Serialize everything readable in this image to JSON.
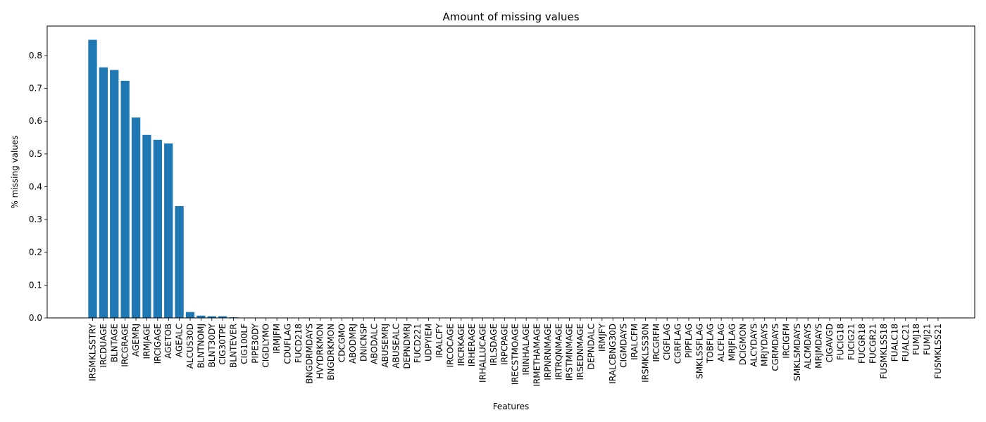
{
  "chart_data": {
    "type": "bar",
    "title": "Amount of missing values",
    "xlabel": "Features",
    "ylabel": "% missing values",
    "ylim": [
      0,
      0.89
    ],
    "yticks": [
      0.0,
      0.1,
      0.2,
      0.3,
      0.4,
      0.5,
      0.6,
      0.7,
      0.8
    ],
    "ytick_labels": [
      "0.0",
      "0.1",
      "0.2",
      "0.3",
      "0.4",
      "0.5",
      "0.6",
      "0.7",
      "0.8"
    ],
    "grid": false,
    "bar_color": "#1f77b4",
    "categories": [
      "IRSMKLSSTRY",
      "IRCDUAGE",
      "BLNTAGE",
      "IRCGRAGE",
      "AGEMRJ",
      "IRMJAGE",
      "IRCIGAGE",
      "AGETOB",
      "AGEALC",
      "ALCUS30D",
      "BLNTNOMJ",
      "BLNT30DY",
      "CIG30TPE",
      "BLNTEVER",
      "CIG100LF",
      "PIPE30DY",
      "CIGDLYMO",
      "IRMJFM",
      "CDUFLAG",
      "FUCD218",
      "BNGDRMDAYS",
      "HVYDRKMON",
      "BNGDRKMON",
      "CDCGMO",
      "ABODMRJ",
      "DNICNSP",
      "ABODALC",
      "ABUSEMRJ",
      "ABUSEALC",
      "DEPNDMRJ",
      "FUCD221",
      "UDPYIEM",
      "IRALCFY",
      "IRCOCAGE",
      "IRCRKAGE",
      "IRHERAGE",
      "IRHALLUCAGE",
      "IRLSDAGE",
      "IRPCPAGE",
      "IRECSTMOAGE",
      "IRINHALAGE",
      "IRMETHAMAGE",
      "IRPNRNMAGE",
      "IRTRQNMAGE",
      "IRSTMNMAGE",
      "IRSEDNMAGE",
      "DEPNDALC",
      "IRMJFY",
      "IRALCBNG30D",
      "CIGMDAYS",
      "IRALCFM",
      "IRSMKLSS30N",
      "IRCGRFM",
      "CIGFLAG",
      "CGRFLAG",
      "PIPFLAG",
      "SMKLSSFLAG",
      "TOBFLAG",
      "ALCFLAG",
      "MRJFLAG",
      "DCIGMON",
      "ALCYDAYS",
      "MRJYDAYS",
      "CGRMDAYS",
      "IRCIGFM",
      "SMKLSMDAYS",
      "ALCMDAYS",
      "MRJMDAYS",
      "CIGAVGD",
      "FUCIG18",
      "FUCIG21",
      "FUCGR18",
      "FUCGR21",
      "FUSMKLSS18",
      "FUALC18",
      "FUALC21",
      "FUMJ18",
      "FUMJ21",
      "FUSMKLSS21"
    ],
    "values": [
      0.848,
      0.764,
      0.756,
      0.723,
      0.611,
      0.558,
      0.543,
      0.532,
      0.341,
      0.018,
      0.007,
      0.005,
      0.005,
      0.002,
      0.001,
      0.001,
      0.001,
      0.0005,
      0.0005,
      0.0005,
      0.0004,
      0.0004,
      0.0004,
      0.0003,
      0.0003,
      0.0003,
      0.0003,
      0.0003,
      0.0003,
      0.0003,
      0.0002,
      0.0002,
      0.0002,
      0.0002,
      0.0002,
      0.0002,
      0.0002,
      0.0002,
      0.0002,
      0.0002,
      0.0002,
      0.0002,
      0.0002,
      0.0002,
      0.0002,
      0.0002,
      0.0001,
      0.0001,
      0.0001,
      0.0001,
      0.0001,
      0.0001,
      0.0001,
      0,
      0,
      0,
      0,
      0,
      0,
      0,
      0,
      0,
      0,
      0,
      0,
      0,
      0,
      0,
      0,
      0,
      0,
      0,
      0,
      0,
      0,
      0,
      0,
      0,
      0
    ]
  }
}
